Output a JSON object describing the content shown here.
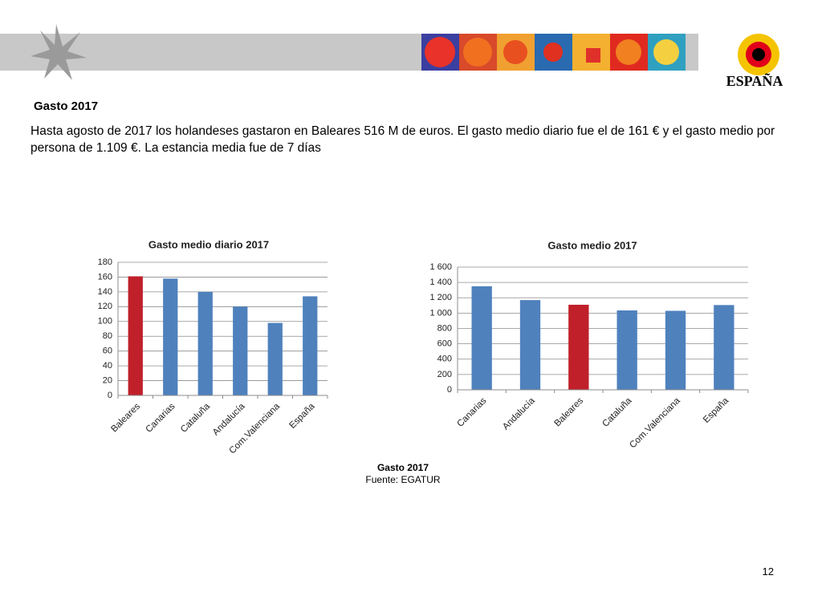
{
  "header": {
    "title": "Gasto 2017",
    "logo_text": "ESPAÑA"
  },
  "body": "Hasta agosto de 2017 los holandeses gastaron en Baleares 516 M de euros. El gasto medio diario fue el de 161 € y el gasto medio por persona de 1.109 €. La estancia media fue de 7 días",
  "chart_data": [
    {
      "type": "bar",
      "title": "Gasto medio diario 2017",
      "categories": [
        "Baleares",
        "Canarias",
        "Cataluña",
        "Andalucía",
        "Com.Valenciana",
        "España"
      ],
      "values": [
        161,
        158,
        140,
        120,
        98,
        134
      ],
      "colors": [
        "#c0202a",
        "#4f81bd",
        "#4f81bd",
        "#4f81bd",
        "#4f81bd",
        "#4f81bd"
      ],
      "ylim": [
        0,
        180
      ],
      "yticks": [
        0,
        20,
        40,
        60,
        80,
        100,
        120,
        140,
        160,
        180
      ],
      "grid": true
    },
    {
      "type": "bar",
      "title": "Gasto medio 2017",
      "categories": [
        "Canarias",
        "Andalucía",
        "Baleares",
        "Cataluña",
        "Com.Valenciana",
        "España"
      ],
      "values": [
        1350,
        1170,
        1109,
        1035,
        1030,
        1105
      ],
      "colors": [
        "#4f81bd",
        "#4f81bd",
        "#c0202a",
        "#4f81bd",
        "#4f81bd",
        "#4f81bd"
      ],
      "ylim": [
        0,
        1600
      ],
      "yticks": [
        0,
        200,
        400,
        600,
        800,
        {
          "value": 1000,
          "label": "1 000"
        },
        {
          "value": 1200,
          "label": "1 200"
        },
        {
          "value": 1400,
          "label": "1 400"
        },
        {
          "value": 1600,
          "label": "1 600"
        }
      ],
      "grid": true
    }
  ],
  "caption": "Gasto 2017",
  "source": "Fuente: EGATUR",
  "page_number": "12"
}
